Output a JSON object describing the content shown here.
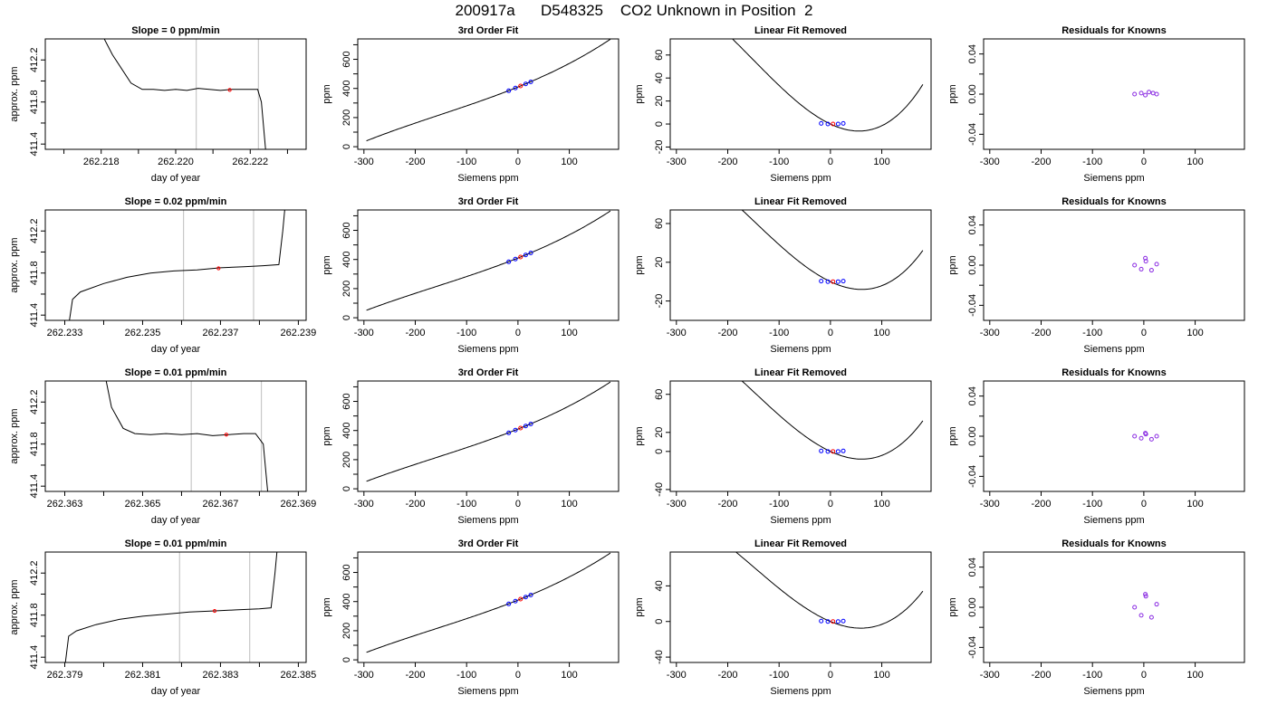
{
  "page_title": "200917a      D548325    CO2 Unknown in Position  2",
  "colors": {
    "trace": "#000000",
    "guide": "#c8c8c8",
    "known": "#0000ff",
    "unknown": "#ff0000",
    "residual": "#8a2be2"
  },
  "chart_data": [
    {
      "id": "r1-trace",
      "type": "line",
      "title": "Slope =  0  ppm/min",
      "xlabel": "day of year",
      "ylabel": "approx. ppm",
      "xlim": [
        262.2165,
        262.2235
      ],
      "ylim": [
        411.35,
        412.4
      ],
      "xticks": [
        262.217,
        262.218,
        262.219,
        262.22,
        262.221,
        262.222,
        262.223
      ],
      "xtick_labels": [
        "",
        "262.218",
        "",
        "262.220",
        "",
        "262.222",
        ""
      ],
      "yticks": [
        411.4,
        411.6,
        411.8,
        412.0,
        412.2
      ],
      "ytick_labels": [
        "411.4",
        "",
        "411.8",
        "",
        "412.2"
      ],
      "x": [
        262.2175,
        262.2183,
        262.2188,
        262.2191,
        262.2194,
        262.2197,
        262.22,
        262.2203,
        262.2206,
        262.2209,
        262.2212,
        262.2215,
        262.2218,
        262.222,
        262.2222,
        262.2223,
        262.2224,
        262.2225
      ],
      "y": [
        412.8,
        412.25,
        411.98,
        411.92,
        411.92,
        411.91,
        411.92,
        411.91,
        411.93,
        411.92,
        411.91,
        411.92,
        411.92,
        411.92,
        411.92,
        411.8,
        411.4,
        411.0
      ],
      "vlines": [
        262.22055,
        262.22222
      ],
      "marker": {
        "x": 262.22145,
        "y": 411.915
      }
    },
    {
      "id": "r1-fit",
      "type": "line",
      "title": "3rd Order Fit",
      "xlabel": "Siemens ppm",
      "ylabel": "ppm",
      "xlim": [
        -312,
        196
      ],
      "ylim": [
        -18,
        740
      ],
      "xticks": [
        -300,
        -200,
        -100,
        0,
        100
      ],
      "xtick_labels": [
        "-300",
        "-200",
        "-100",
        "0",
        "100"
      ],
      "yticks": [
        0,
        100,
        200,
        300,
        400,
        500,
        600,
        700
      ],
      "ytick_labels": [
        "0",
        "",
        "200",
        "",
        "400",
        "",
        "600",
        ""
      ],
      "curve": {
        "c0": 410,
        "c1": 1.42,
        "c2": 0.0016,
        "c3": 3.5e-06,
        "from": -295,
        "to": 180
      },
      "known_points": {
        "x": [
          -18,
          -5,
          15,
          25
        ],
        "y": [
          384,
          403,
          431,
          445
        ]
      },
      "unknown_point": {
        "x": 5,
        "y": 417
      }
    },
    {
      "id": "r1-lin",
      "type": "line",
      "title": "Linear Fit Removed",
      "xlabel": "Siemens ppm",
      "ylabel": "ppm",
      "xlim": [
        -312,
        196
      ],
      "ylim": [
        -22,
        74
      ],
      "xticks": [
        -300,
        -200,
        -100,
        0,
        100
      ],
      "xtick_labels": [
        "-300",
        "-200",
        "-100",
        "0",
        "100"
      ],
      "yticks": [
        -20,
        0,
        20,
        40,
        60
      ],
      "ytick_labels": [
        "-20",
        "0",
        "20",
        "40",
        "60"
      ],
      "curve": {
        "c0": 0,
        "c1": -0.21,
        "c2": 0.0016,
        "c3": 3.5e-06,
        "from": -293,
        "to": 180
      },
      "known_points": {
        "x": [
          -18,
          -5,
          15,
          25
        ],
        "y": [
          0.5,
          0,
          0,
          0.5
        ]
      },
      "unknown_point": {
        "x": 5,
        "y": 0
      }
    },
    {
      "id": "r1-res",
      "type": "scatter",
      "title": "Residuals for Knowns",
      "xlabel": "Siemens ppm",
      "ylabel": "ppm",
      "xlim": [
        -312,
        196
      ],
      "ylim": [
        -0.055,
        0.055
      ],
      "xticks": [
        -300,
        -200,
        -100,
        0,
        100
      ],
      "xtick_labels": [
        "-300",
        "-200",
        "-100",
        "0",
        "100"
      ],
      "yticks": [
        -0.04,
        -0.02,
        0.0,
        0.02,
        0.04
      ],
      "ytick_labels": [
        "-0.04",
        "",
        "0.00",
        "",
        "0.04"
      ],
      "residual_points": {
        "x": [
          -18,
          -5,
          3,
          10,
          18,
          25
        ],
        "y": [
          0.0,
          0.001,
          -0.001,
          0.002,
          0.001,
          0.0
        ]
      }
    },
    {
      "id": "r2-trace",
      "type": "line",
      "title": "Slope =  0.02  ppm/min",
      "xlabel": "day of year",
      "ylabel": "approx. ppm",
      "xlim": [
        262.2325,
        262.2392
      ],
      "ylim": [
        411.35,
        412.4
      ],
      "xticks": [
        262.233,
        262.234,
        262.235,
        262.236,
        262.237,
        262.238,
        262.239
      ],
      "xtick_labels": [
        "262.233",
        "",
        "262.235",
        "",
        "262.237",
        "",
        "262.239"
      ],
      "yticks": [
        411.4,
        411.6,
        411.8,
        412.0,
        412.2
      ],
      "ytick_labels": [
        "411.4",
        "",
        "411.8",
        "",
        "412.2"
      ],
      "x": [
        262.2331,
        262.2332,
        262.2334,
        262.234,
        262.2346,
        262.2352,
        262.2358,
        262.2364,
        262.237,
        262.2376,
        262.2381,
        262.2385,
        262.2386,
        262.2387
      ],
      "y": [
        411.3,
        411.55,
        411.62,
        411.7,
        411.76,
        411.8,
        411.82,
        411.83,
        411.85,
        411.86,
        411.87,
        411.88,
        412.2,
        412.6
      ],
      "vlines": [
        262.23605,
        262.23785
      ],
      "marker": {
        "x": 262.23695,
        "y": 411.845
      }
    },
    {
      "id": "r2-fit",
      "type": "line",
      "title": "3rd Order Fit",
      "xlabel": "Siemens ppm",
      "ylabel": "ppm",
      "xlim": [
        -312,
        196
      ],
      "ylim": [
        -18,
        740
      ],
      "xticks": [
        -300,
        -200,
        -100,
        0,
        100
      ],
      "xtick_labels": [
        "-300",
        "-200",
        "-100",
        "0",
        "100"
      ],
      "yticks": [
        0,
        100,
        200,
        300,
        400,
        500,
        600,
        700
      ],
      "ytick_labels": [
        "0",
        "",
        "200",
        "",
        "400",
        "",
        "600",
        ""
      ],
      "curve": {
        "c0": 410,
        "c1": 1.4,
        "c2": 0.0016,
        "c3": 3.3e-06,
        "from": -295,
        "to": 180
      },
      "known_points": {
        "x": [
          -18,
          -5,
          15,
          25
        ],
        "y": [
          384,
          403,
          431,
          445
        ]
      },
      "unknown_point": {
        "x": 5,
        "y": 417
      }
    },
    {
      "id": "r2-lin",
      "type": "line",
      "title": "Linear Fit Removed",
      "xlabel": "Siemens ppm",
      "ylabel": "ppm",
      "xlim": [
        -312,
        196
      ],
      "ylim": [
        -40,
        74
      ],
      "xticks": [
        -300,
        -200,
        -100,
        0,
        100
      ],
      "xtick_labels": [
        "-300",
        "-200",
        "-100",
        "0",
        "100"
      ],
      "yticks": [
        -20,
        20,
        60
      ],
      "ytick_labels": [
        "-20",
        "20",
        "60"
      ],
      "curve": {
        "c0": 0,
        "c1": -0.25,
        "c2": 0.0017,
        "c3": 3.8e-06,
        "from": -293,
        "to": 180
      },
      "known_points": {
        "x": [
          -18,
          -5,
          15,
          25
        ],
        "y": [
          0.5,
          0,
          0,
          0.5
        ]
      },
      "unknown_point": {
        "x": 5,
        "y": 0
      }
    },
    {
      "id": "r2-res",
      "type": "scatter",
      "title": "Residuals for Knowns",
      "xlabel": "Siemens ppm",
      "ylabel": "ppm",
      "xlim": [
        -312,
        196
      ],
      "ylim": [
        -0.055,
        0.055
      ],
      "xticks": [
        -300,
        -200,
        -100,
        0,
        100
      ],
      "xtick_labels": [
        "-300",
        "-200",
        "-100",
        "0",
        "100"
      ],
      "yticks": [
        -0.04,
        -0.02,
        0.0,
        0.02,
        0.04
      ],
      "ytick_labels": [
        "-0.04",
        "",
        "0.00",
        "",
        "0.04"
      ],
      "residual_points": {
        "x": [
          -18,
          -5,
          3,
          4,
          15,
          25
        ],
        "y": [
          0.0,
          -0.004,
          0.007,
          0.004,
          -0.005,
          0.001
        ]
      }
    },
    {
      "id": "r3-trace",
      "type": "line",
      "title": "Slope =  0.01  ppm/min",
      "xlabel": "day of year",
      "ylabel": "approx. ppm",
      "xlim": [
        262.3625,
        262.3692
      ],
      "ylim": [
        411.35,
        412.4
      ],
      "xticks": [
        262.363,
        262.364,
        262.365,
        262.366,
        262.367,
        262.368,
        262.369
      ],
      "xtick_labels": [
        "262.363",
        "",
        "262.365",
        "",
        "262.367",
        "",
        "262.369"
      ],
      "yticks": [
        411.4,
        411.6,
        411.8,
        412.0,
        412.2
      ],
      "ytick_labels": [
        "411.4",
        "",
        "411.8",
        "",
        "412.2"
      ],
      "x": [
        262.3639,
        262.3642,
        262.3645,
        262.3648,
        262.3652,
        262.3656,
        262.366,
        262.3664,
        262.3668,
        262.3672,
        262.3676,
        262.3679,
        262.3681,
        262.3682,
        262.3683
      ],
      "y": [
        412.7,
        412.15,
        411.95,
        411.9,
        411.89,
        411.9,
        411.89,
        411.9,
        411.88,
        411.89,
        411.9,
        411.9,
        411.8,
        411.4,
        411.0
      ],
      "vlines": [
        262.36625,
        262.36805
      ],
      "marker": {
        "x": 262.36715,
        "y": 411.89
      }
    },
    {
      "id": "r3-fit",
      "type": "line",
      "title": "3rd Order Fit",
      "xlabel": "Siemens ppm",
      "ylabel": "ppm",
      "xlim": [
        -312,
        196
      ],
      "ylim": [
        -18,
        740
      ],
      "xticks": [
        -300,
        -200,
        -100,
        0,
        100
      ],
      "xtick_labels": [
        "-300",
        "-200",
        "-100",
        "0",
        "100"
      ],
      "yticks": [
        0,
        100,
        200,
        300,
        400,
        500,
        600,
        700
      ],
      "ytick_labels": [
        "0",
        "",
        "200",
        "",
        "400",
        "",
        "600",
        ""
      ],
      "curve": {
        "c0": 410,
        "c1": 1.4,
        "c2": 0.0016,
        "c3": 3.3e-06,
        "from": -295,
        "to": 180
      },
      "known_points": {
        "x": [
          -18,
          -5,
          15,
          25
        ],
        "y": [
          384,
          403,
          431,
          445
        ]
      },
      "unknown_point": {
        "x": 5,
        "y": 417
      }
    },
    {
      "id": "r3-lin",
      "type": "line",
      "title": "Linear Fit Removed",
      "xlabel": "Siemens ppm",
      "ylabel": "ppm",
      "xlim": [
        -312,
        196
      ],
      "ylim": [
        -42,
        74
      ],
      "xticks": [
        -300,
        -200,
        -100,
        0,
        100
      ],
      "xtick_labels": [
        "-300",
        "-200",
        "-100",
        "0",
        "100"
      ],
      "yticks": [
        -40,
        0,
        20,
        60
      ],
      "ytick_labels": [
        "-40",
        "0",
        "20",
        "60"
      ],
      "curve": {
        "c0": 0,
        "c1": -0.25,
        "c2": 0.0017,
        "c3": 3.8e-06,
        "from": -293,
        "to": 180
      },
      "known_points": {
        "x": [
          -18,
          -5,
          15,
          25
        ],
        "y": [
          0.5,
          0,
          0,
          0.5
        ]
      },
      "unknown_point": {
        "x": 5,
        "y": 0
      }
    },
    {
      "id": "r3-res",
      "type": "scatter",
      "title": "Residuals for Knowns",
      "xlabel": "Siemens ppm",
      "ylabel": "ppm",
      "xlim": [
        -312,
        196
      ],
      "ylim": [
        -0.055,
        0.055
      ],
      "xticks": [
        -300,
        -200,
        -100,
        0,
        100
      ],
      "xtick_labels": [
        "-300",
        "-200",
        "-100",
        "0",
        "100"
      ],
      "yticks": [
        -0.04,
        -0.02,
        0.0,
        0.02,
        0.04
      ],
      "ytick_labels": [
        "-0.04",
        "",
        "0.00",
        "",
        "0.04"
      ],
      "residual_points": {
        "x": [
          -18,
          -5,
          3,
          4,
          15,
          25
        ],
        "y": [
          0.0,
          -0.002,
          0.003,
          0.002,
          -0.003,
          0.0
        ]
      }
    },
    {
      "id": "r4-trace",
      "type": "line",
      "title": "Slope =  0.01  ppm/min",
      "xlabel": "day of year",
      "ylabel": "approx. ppm",
      "xlim": [
        262.3785,
        262.3852
      ],
      "ylim": [
        411.35,
        412.4
      ],
      "xticks": [
        262.379,
        262.38,
        262.381,
        262.382,
        262.383,
        262.384,
        262.385
      ],
      "xtick_labels": [
        "262.379",
        "",
        "262.381",
        "",
        "262.383",
        "",
        "262.385"
      ],
      "yticks": [
        411.4,
        411.6,
        411.8,
        412.0,
        412.2
      ],
      "ytick_labels": [
        "411.4",
        "",
        "411.8",
        "",
        "412.2"
      ],
      "x": [
        262.379,
        262.3791,
        262.3793,
        262.3798,
        262.3804,
        262.381,
        262.3816,
        262.3822,
        262.3828,
        262.3834,
        262.384,
        262.3843,
        262.3844,
        262.3845
      ],
      "y": [
        411.3,
        411.6,
        411.65,
        411.71,
        411.76,
        411.79,
        411.81,
        411.83,
        411.84,
        411.85,
        411.86,
        411.87,
        412.2,
        412.6
      ],
      "vlines": [
        262.38195,
        262.38375
      ],
      "marker": {
        "x": 262.38285,
        "y": 411.84
      }
    },
    {
      "id": "r4-fit",
      "type": "line",
      "title": "3rd Order Fit",
      "xlabel": "Siemens ppm",
      "ylabel": "ppm",
      "xlim": [
        -312,
        196
      ],
      "ylim": [
        -18,
        740
      ],
      "xticks": [
        -300,
        -200,
        -100,
        0,
        100
      ],
      "xtick_labels": [
        "-300",
        "-200",
        "-100",
        "0",
        "100"
      ],
      "yticks": [
        0,
        100,
        200,
        300,
        400,
        500,
        600,
        700
      ],
      "ytick_labels": [
        "0",
        "",
        "200",
        "",
        "400",
        "",
        "600",
        ""
      ],
      "curve": {
        "c0": 410,
        "c1": 1.4,
        "c2": 0.0016,
        "c3": 3.3e-06,
        "from": -295,
        "to": 180
      },
      "known_points": {
        "x": [
          -18,
          -5,
          15,
          25
        ],
        "y": [
          384,
          403,
          431,
          445
        ]
      },
      "unknown_point": {
        "x": 5,
        "y": 417
      }
    },
    {
      "id": "r4-lin",
      "type": "line",
      "title": "Linear Fit Removed",
      "xlabel": "Siemens ppm",
      "ylabel": "ppm",
      "xlim": [
        -312,
        196
      ],
      "ylim": [
        -46,
        78
      ],
      "xticks": [
        -300,
        -200,
        -100,
        0,
        100
      ],
      "xtick_labels": [
        "-300",
        "-200",
        "-100",
        "0",
        "100"
      ],
      "yticks": [
        -40,
        0,
        40
      ],
      "ytick_labels": [
        "-40",
        "0",
        "40"
      ],
      "curve": {
        "c0": 0,
        "c1": -0.24,
        "c2": 0.0017,
        "c3": 3.8e-06,
        "from": -293,
        "to": 180
      },
      "known_points": {
        "x": [
          -18,
          -5,
          15,
          25
        ],
        "y": [
          0.5,
          0,
          0,
          0.5
        ]
      },
      "unknown_point": {
        "x": 5,
        "y": 0
      }
    },
    {
      "id": "r4-res",
      "type": "scatter",
      "title": "Residuals for Knowns",
      "xlabel": "Siemens ppm",
      "ylabel": "ppm",
      "xlim": [
        -312,
        196
      ],
      "ylim": [
        -0.055,
        0.055
      ],
      "xticks": [
        -300,
        -200,
        -100,
        0,
        100
      ],
      "xtick_labels": [
        "-300",
        "-200",
        "-100",
        "0",
        "100"
      ],
      "yticks": [
        -0.04,
        -0.02,
        0.0,
        0.02,
        0.04
      ],
      "ytick_labels": [
        "-0.04",
        "",
        "0.00",
        "",
        "0.04"
      ],
      "residual_points": {
        "x": [
          -18,
          -5,
          3,
          4,
          15,
          25
        ],
        "y": [
          0.0,
          -0.008,
          0.013,
          0.011,
          -0.01,
          0.003
        ]
      }
    }
  ]
}
